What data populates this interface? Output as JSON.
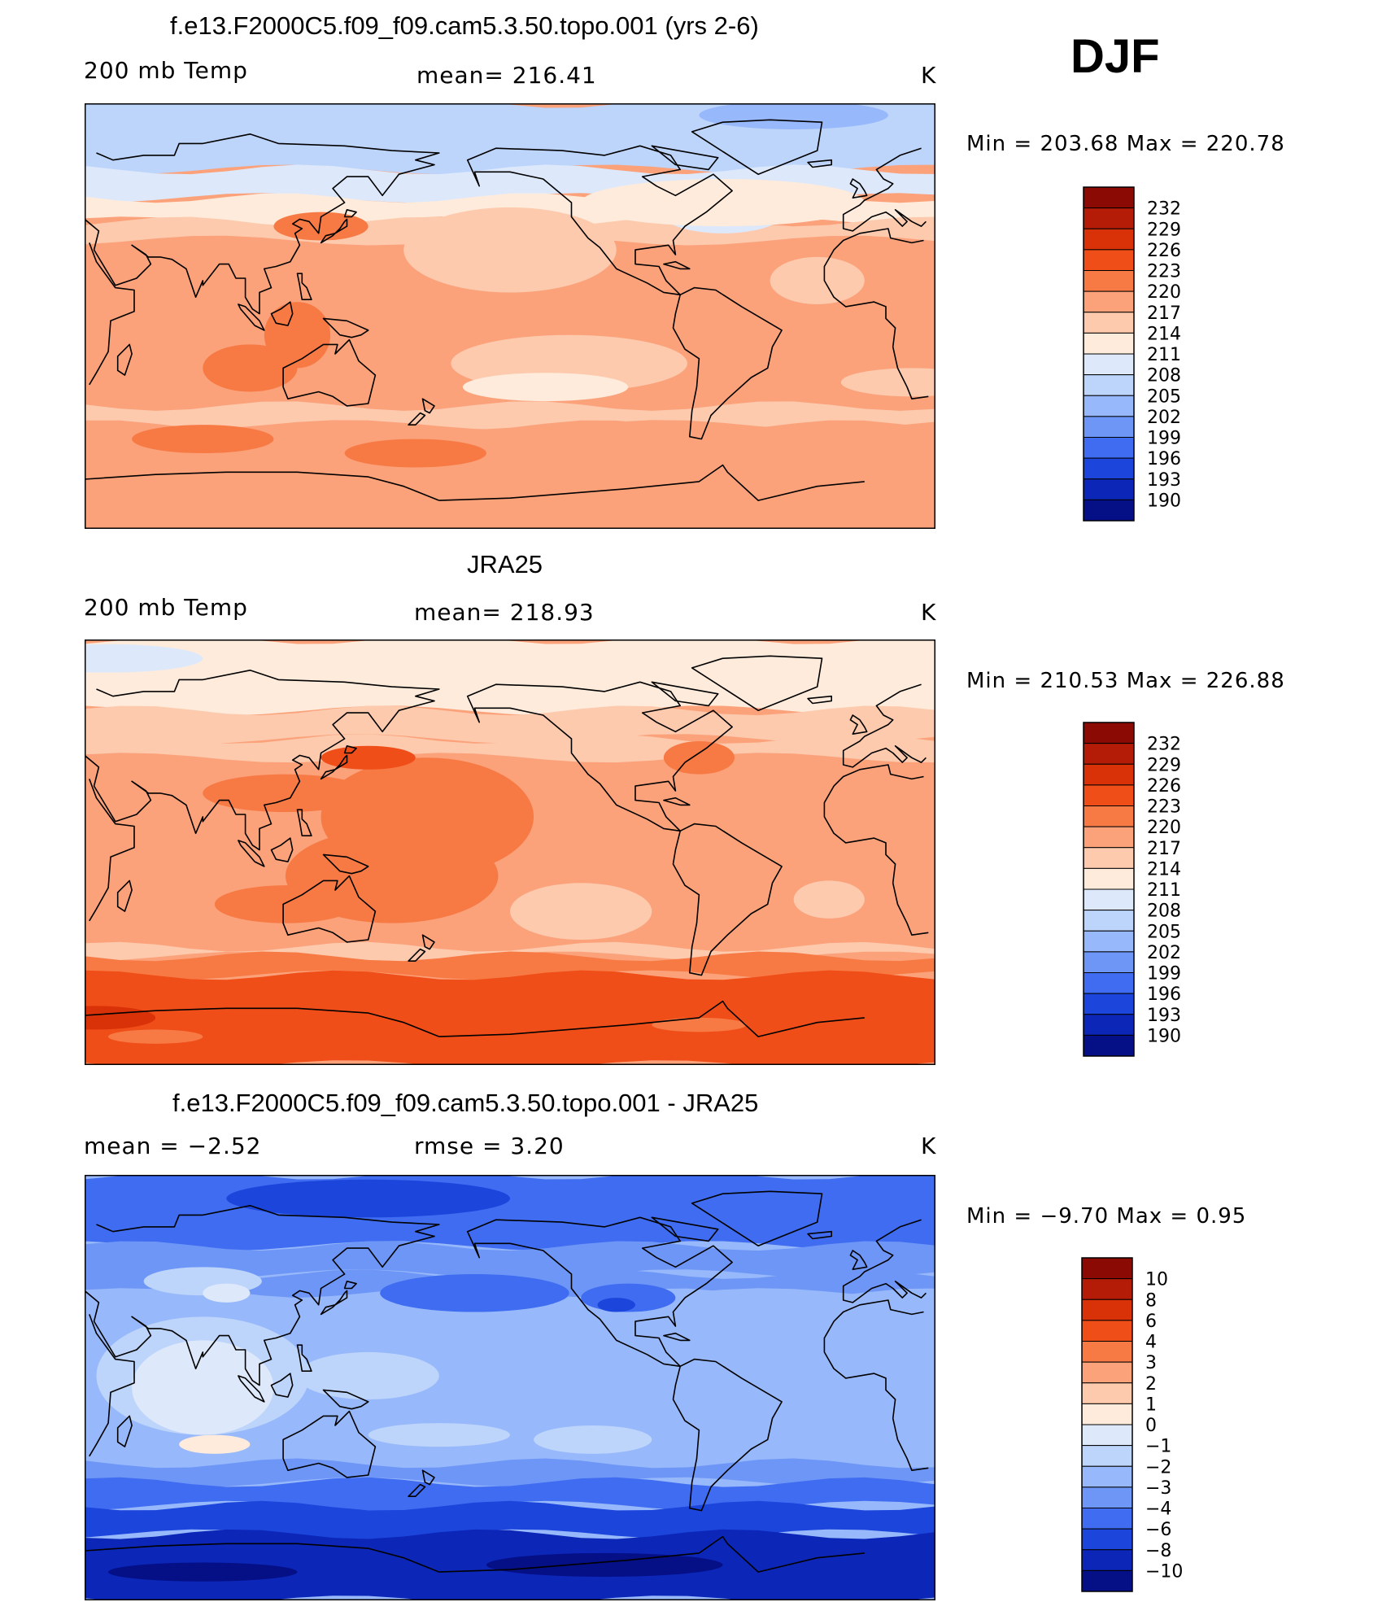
{
  "season": "DJF",
  "panels": [
    {
      "title": "f.e13.F2000C5.f09_f09.cam5.3.50.topo.001 (yrs 2-6)",
      "left_label": "200 mb Temp",
      "center_label": "mean= 216.41",
      "units": "K",
      "min_max": "Min = 203.68 Max = 220.78",
      "scheme": "abs",
      "field_type": "model",
      "colorbar_levels": [
        "232",
        "229",
        "226",
        "223",
        "220",
        "217",
        "214",
        "211",
        "208",
        "205",
        "202",
        "199",
        "196",
        "193",
        "190"
      ]
    },
    {
      "title": "JRA25",
      "left_label": "200 mb Temp",
      "center_label": "mean= 218.93",
      "units": "K",
      "min_max": "Min = 210.53 Max = 226.88",
      "scheme": "abs",
      "field_type": "obs",
      "colorbar_levels": [
        "232",
        "229",
        "226",
        "223",
        "220",
        "217",
        "214",
        "211",
        "208",
        "205",
        "202",
        "199",
        "196",
        "193",
        "190"
      ]
    },
    {
      "title": "f.e13.F2000C5.f09_f09.cam5.3.50.topo.001 - JRA25",
      "left_label": "mean =   −2.52",
      "center_label": "rmse =    3.20",
      "units": "K",
      "min_max": "Min =  −9.70 Max =    0.95",
      "scheme": "diff",
      "field_type": "diff",
      "colorbar_levels": [
        "10",
        "8",
        "6",
        "4",
        "3",
        "2",
        "1",
        "0",
        "−1",
        "−2",
        "−3",
        "−4",
        "−6",
        "−8",
        "−10"
      ]
    }
  ],
  "colors": {
    "abs_scale": [
      "#8b0a03",
      "#b51c08",
      "#d93208",
      "#f04e18",
      "#f77a45",
      "#fba27b",
      "#fdcaae",
      "#feebdb",
      "#dde9fb",
      "#bdd4fb",
      "#97b8fa",
      "#6e96f6",
      "#3f6cf0",
      "#1c45dc",
      "#0c26b8",
      "#050f86"
    ],
    "diff_scale": [
      "#8b0a03",
      "#b51c08",
      "#d93208",
      "#f04e18",
      "#f77a45",
      "#fba27b",
      "#fdcaae",
      "#feebdb",
      "#dde9fb",
      "#bdd4fb",
      "#97b8fa",
      "#6e96f6",
      "#3f6cf0",
      "#1c45dc",
      "#0c26b8",
      "#050f86"
    ]
  }
}
